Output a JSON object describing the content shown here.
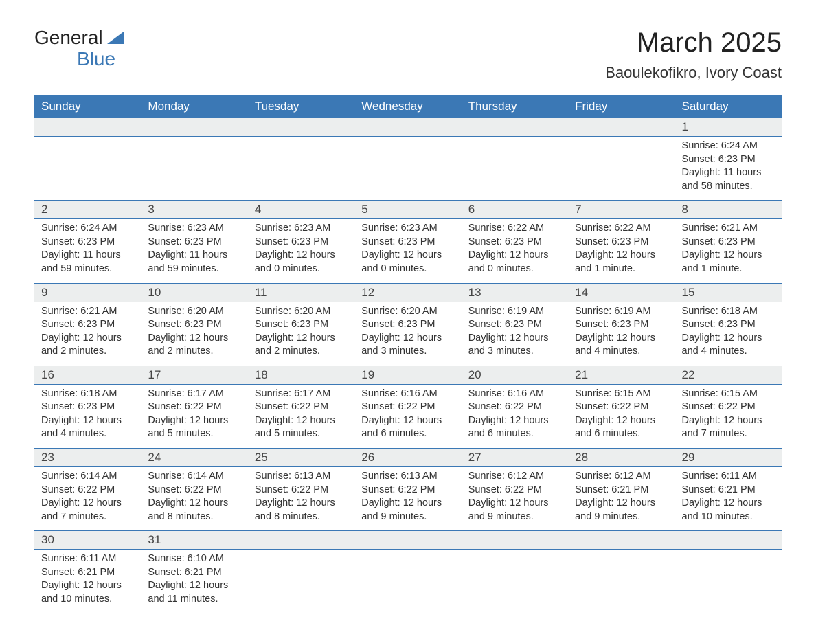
{
  "logo": {
    "line1": "General",
    "line2": "Blue"
  },
  "title": "March 2025",
  "subtitle": "Baoulekofikro, Ivory Coast",
  "header_bg": "#3b78b5",
  "header_fg": "#ffffff",
  "daynum_bg": "#eceeee",
  "border_color": "#3b78b5",
  "text_color": "#333333",
  "days_of_week": [
    "Sunday",
    "Monday",
    "Tuesday",
    "Wednesday",
    "Thursday",
    "Friday",
    "Saturday"
  ],
  "weeks": [
    [
      null,
      null,
      null,
      null,
      null,
      null,
      {
        "n": "1",
        "sr": "Sunrise: 6:24 AM",
        "ss": "Sunset: 6:23 PM",
        "dl": "Daylight: 11 hours and 58 minutes."
      }
    ],
    [
      {
        "n": "2",
        "sr": "Sunrise: 6:24 AM",
        "ss": "Sunset: 6:23 PM",
        "dl": "Daylight: 11 hours and 59 minutes."
      },
      {
        "n": "3",
        "sr": "Sunrise: 6:23 AM",
        "ss": "Sunset: 6:23 PM",
        "dl": "Daylight: 11 hours and 59 minutes."
      },
      {
        "n": "4",
        "sr": "Sunrise: 6:23 AM",
        "ss": "Sunset: 6:23 PM",
        "dl": "Daylight: 12 hours and 0 minutes."
      },
      {
        "n": "5",
        "sr": "Sunrise: 6:23 AM",
        "ss": "Sunset: 6:23 PM",
        "dl": "Daylight: 12 hours and 0 minutes."
      },
      {
        "n": "6",
        "sr": "Sunrise: 6:22 AM",
        "ss": "Sunset: 6:23 PM",
        "dl": "Daylight: 12 hours and 0 minutes."
      },
      {
        "n": "7",
        "sr": "Sunrise: 6:22 AM",
        "ss": "Sunset: 6:23 PM",
        "dl": "Daylight: 12 hours and 1 minute."
      },
      {
        "n": "8",
        "sr": "Sunrise: 6:21 AM",
        "ss": "Sunset: 6:23 PM",
        "dl": "Daylight: 12 hours and 1 minute."
      }
    ],
    [
      {
        "n": "9",
        "sr": "Sunrise: 6:21 AM",
        "ss": "Sunset: 6:23 PM",
        "dl": "Daylight: 12 hours and 2 minutes."
      },
      {
        "n": "10",
        "sr": "Sunrise: 6:20 AM",
        "ss": "Sunset: 6:23 PM",
        "dl": "Daylight: 12 hours and 2 minutes."
      },
      {
        "n": "11",
        "sr": "Sunrise: 6:20 AM",
        "ss": "Sunset: 6:23 PM",
        "dl": "Daylight: 12 hours and 2 minutes."
      },
      {
        "n": "12",
        "sr": "Sunrise: 6:20 AM",
        "ss": "Sunset: 6:23 PM",
        "dl": "Daylight: 12 hours and 3 minutes."
      },
      {
        "n": "13",
        "sr": "Sunrise: 6:19 AM",
        "ss": "Sunset: 6:23 PM",
        "dl": "Daylight: 12 hours and 3 minutes."
      },
      {
        "n": "14",
        "sr": "Sunrise: 6:19 AM",
        "ss": "Sunset: 6:23 PM",
        "dl": "Daylight: 12 hours and 4 minutes."
      },
      {
        "n": "15",
        "sr": "Sunrise: 6:18 AM",
        "ss": "Sunset: 6:23 PM",
        "dl": "Daylight: 12 hours and 4 minutes."
      }
    ],
    [
      {
        "n": "16",
        "sr": "Sunrise: 6:18 AM",
        "ss": "Sunset: 6:23 PM",
        "dl": "Daylight: 12 hours and 4 minutes."
      },
      {
        "n": "17",
        "sr": "Sunrise: 6:17 AM",
        "ss": "Sunset: 6:22 PM",
        "dl": "Daylight: 12 hours and 5 minutes."
      },
      {
        "n": "18",
        "sr": "Sunrise: 6:17 AM",
        "ss": "Sunset: 6:22 PM",
        "dl": "Daylight: 12 hours and 5 minutes."
      },
      {
        "n": "19",
        "sr": "Sunrise: 6:16 AM",
        "ss": "Sunset: 6:22 PM",
        "dl": "Daylight: 12 hours and 6 minutes."
      },
      {
        "n": "20",
        "sr": "Sunrise: 6:16 AM",
        "ss": "Sunset: 6:22 PM",
        "dl": "Daylight: 12 hours and 6 minutes."
      },
      {
        "n": "21",
        "sr": "Sunrise: 6:15 AM",
        "ss": "Sunset: 6:22 PM",
        "dl": "Daylight: 12 hours and 6 minutes."
      },
      {
        "n": "22",
        "sr": "Sunrise: 6:15 AM",
        "ss": "Sunset: 6:22 PM",
        "dl": "Daylight: 12 hours and 7 minutes."
      }
    ],
    [
      {
        "n": "23",
        "sr": "Sunrise: 6:14 AM",
        "ss": "Sunset: 6:22 PM",
        "dl": "Daylight: 12 hours and 7 minutes."
      },
      {
        "n": "24",
        "sr": "Sunrise: 6:14 AM",
        "ss": "Sunset: 6:22 PM",
        "dl": "Daylight: 12 hours and 8 minutes."
      },
      {
        "n": "25",
        "sr": "Sunrise: 6:13 AM",
        "ss": "Sunset: 6:22 PM",
        "dl": "Daylight: 12 hours and 8 minutes."
      },
      {
        "n": "26",
        "sr": "Sunrise: 6:13 AM",
        "ss": "Sunset: 6:22 PM",
        "dl": "Daylight: 12 hours and 9 minutes."
      },
      {
        "n": "27",
        "sr": "Sunrise: 6:12 AM",
        "ss": "Sunset: 6:22 PM",
        "dl": "Daylight: 12 hours and 9 minutes."
      },
      {
        "n": "28",
        "sr": "Sunrise: 6:12 AM",
        "ss": "Sunset: 6:21 PM",
        "dl": "Daylight: 12 hours and 9 minutes."
      },
      {
        "n": "29",
        "sr": "Sunrise: 6:11 AM",
        "ss": "Sunset: 6:21 PM",
        "dl": "Daylight: 12 hours and 10 minutes."
      }
    ],
    [
      {
        "n": "30",
        "sr": "Sunrise: 6:11 AM",
        "ss": "Sunset: 6:21 PM",
        "dl": "Daylight: 12 hours and 10 minutes."
      },
      {
        "n": "31",
        "sr": "Sunrise: 6:10 AM",
        "ss": "Sunset: 6:21 PM",
        "dl": "Daylight: 12 hours and 11 minutes."
      },
      null,
      null,
      null,
      null,
      null
    ]
  ]
}
